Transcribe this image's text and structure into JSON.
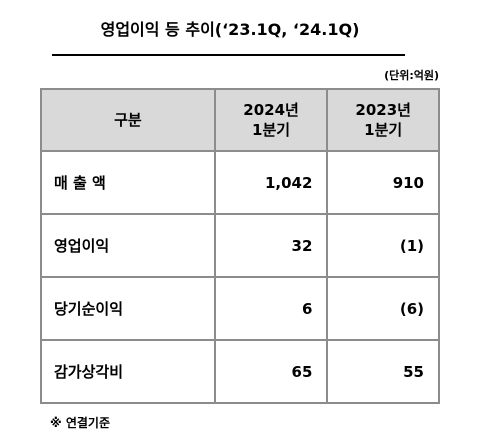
{
  "title": "영업이익 등 추이(‘23.1Q, ‘24.1Q)",
  "unit": "(단위:억원)",
  "table": {
    "header": [
      [
        "구분"
      ],
      [
        "2024년",
        "1분기"
      ],
      [
        "2023년",
        "1분기"
      ]
    ],
    "rows": [
      [
        "매 출 액",
        "1,042",
        "910"
      ],
      [
        "영업이익",
        "32",
        "(1)"
      ],
      [
        "당기순이익",
        "6",
        "(6)"
      ],
      [
        "감가상각비",
        "65",
        "55"
      ]
    ]
  },
  "footnote": "※ 연결기준"
}
